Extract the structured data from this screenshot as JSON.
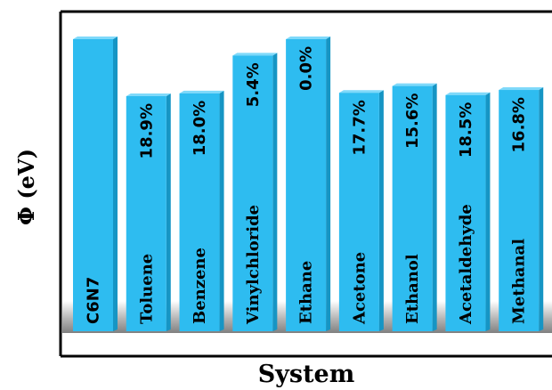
{
  "chart_data": {
    "type": "bar",
    "xlabel": "System",
    "ylabel": "Φ (eV)",
    "categories": [
      "C6N7",
      "Toluene",
      "Benzene",
      "Vinylchloride",
      "Ethane",
      "Acetone",
      "Ethanol",
      "Acetaldehyde",
      "Methanal"
    ],
    "values": [
      5.35,
      4.34,
      4.39,
      5.06,
      5.35,
      4.4,
      4.52,
      4.36,
      4.45
    ],
    "value_labels": [
      "",
      "18.9%",
      "18.0%",
      "5.4%",
      "0.0%",
      "17.7%",
      "15.6%",
      "18.5%",
      "16.8%"
    ],
    "ylim": [
      0,
      5.6
    ],
    "grid": false,
    "legend": "none",
    "bar_color": "#2ebcf0",
    "bar_side_color": "#1695c4",
    "bar_top_color": "#7fd9fa"
  }
}
